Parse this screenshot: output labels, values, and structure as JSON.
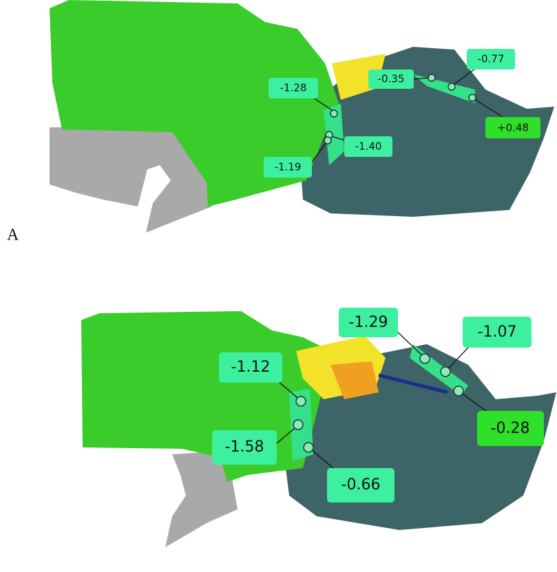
{
  "panel_a": {
    "label": "A",
    "measurements": [
      "-1.28",
      "-0.35",
      "-0.77",
      "+0.48",
      "-1.40",
      "-1.19"
    ]
  },
  "panel_b": {
    "measurements": [
      "-1.29",
      "-1.07",
      "-1.12",
      "-0.28",
      "-1.58",
      "-0.66"
    ]
  }
}
